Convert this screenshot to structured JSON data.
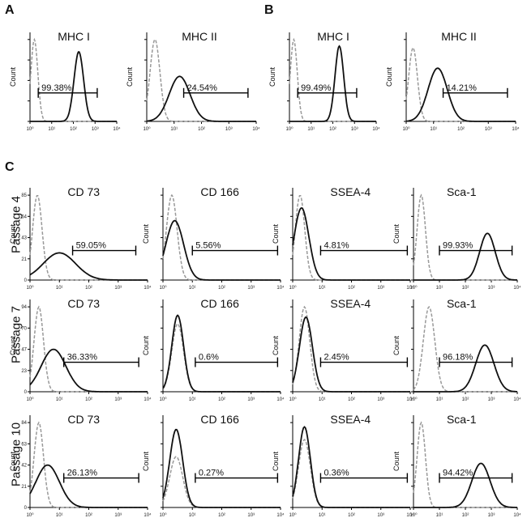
{
  "panels": [
    "A",
    "B",
    "C"
  ],
  "row_labels": [
    "Passage 4",
    "Passage 7",
    "Passage 10"
  ],
  "colors": {
    "sample": "#111111",
    "control": "#999999"
  },
  "axis": {
    "ylabel": "Count",
    "x_tick_labels": [
      "10⁰",
      "10¹",
      "10²",
      "10³",
      "10⁴"
    ]
  },
  "chart_data": [
    {
      "id": "A1",
      "type": "area",
      "title": "MHC I",
      "gate_label": "99.38%",
      "xlim_log10": [
        0,
        4
      ],
      "gate_log10": [
        0.38,
        3.1
      ],
      "y_ticks": [],
      "sample": {
        "peak_log10": 2.25,
        "sigma": 0.22,
        "peak_frac": 0.85
      },
      "control": {
        "peak_log10": 0.2,
        "sigma": 0.16,
        "peak_frac": 1.0
      }
    },
    {
      "id": "A2",
      "type": "area",
      "title": "MHC II",
      "gate_label": "24.54%",
      "xlim_log10": [
        0,
        4
      ],
      "gate_log10": [
        1.35,
        3.7
      ],
      "y_ticks": [],
      "sample": {
        "peak_log10": 1.2,
        "sigma": 0.38,
        "peak_frac": 0.55
      },
      "control": {
        "peak_log10": 0.3,
        "sigma": 0.18,
        "peak_frac": 1.0
      }
    },
    {
      "id": "B1",
      "type": "area",
      "title": "MHC I",
      "gate_label": "99.49%",
      "xlim_log10": [
        0,
        4
      ],
      "gate_log10": [
        0.38,
        3.1
      ],
      "y_ticks": [],
      "sample": {
        "peak_log10": 2.3,
        "sigma": 0.2,
        "peak_frac": 0.92
      },
      "control": {
        "peak_log10": 0.2,
        "sigma": 0.16,
        "peak_frac": 1.0
      }
    },
    {
      "id": "B2",
      "type": "area",
      "title": "MHC II",
      "gate_label": "14.21%",
      "xlim_log10": [
        0,
        4
      ],
      "gate_log10": [
        1.35,
        3.7
      ],
      "y_ticks": [],
      "sample": {
        "peak_log10": 1.15,
        "sigma": 0.35,
        "peak_frac": 0.65
      },
      "control": {
        "peak_log10": 0.25,
        "sigma": 0.16,
        "peak_frac": 0.9
      }
    },
    {
      "id": "C1",
      "type": "area",
      "title": "CD 73",
      "gate_label": "59.05%",
      "xlim_log10": [
        0,
        4
      ],
      "gate_log10": [
        1.45,
        3.6
      ],
      "y_ticks": [
        0,
        21,
        43,
        64,
        85
      ],
      "sample": {
        "peak_log10": 1.0,
        "sigma": 0.55,
        "peak_frac": 0.32
      },
      "control": {
        "peak_log10": 0.25,
        "sigma": 0.16,
        "peak_frac": 1.0
      }
    },
    {
      "id": "C2",
      "type": "area",
      "title": "CD 166",
      "gate_label": "5.56%",
      "xlim_log10": [
        0,
        4
      ],
      "gate_log10": [
        1.0,
        3.9
      ],
      "y_ticks": [],
      "sample": {
        "peak_log10": 0.4,
        "sigma": 0.3,
        "peak_frac": 0.7
      },
      "control": {
        "peak_log10": 0.3,
        "sigma": 0.18,
        "peak_frac": 1.0
      }
    },
    {
      "id": "C3",
      "type": "area",
      "title": "SSEA-4",
      "gate_label": "4.81%",
      "xlim_log10": [
        0,
        4
      ],
      "gate_log10": [
        0.95,
        3.9
      ],
      "y_ticks": [],
      "sample": {
        "peak_log10": 0.3,
        "sigma": 0.25,
        "peak_frac": 0.85
      },
      "control": {
        "peak_log10": 0.25,
        "sigma": 0.16,
        "peak_frac": 1.0
      }
    },
    {
      "id": "C4",
      "type": "area",
      "title": "Sca-1",
      "gate_label": "99.93%",
      "xlim_log10": [
        0,
        4
      ],
      "gate_log10": [
        1.0,
        3.8
      ],
      "y_ticks": [],
      "sample": {
        "peak_log10": 2.85,
        "sigma": 0.3,
        "peak_frac": 0.55
      },
      "control": {
        "peak_log10": 0.3,
        "sigma": 0.16,
        "peak_frac": 1.0
      }
    },
    {
      "id": "C5",
      "type": "area",
      "title": "CD 73",
      "gate_label": "36.33%",
      "xlim_log10": [
        0,
        4
      ],
      "gate_log10": [
        1.15,
        3.7
      ],
      "y_ticks": [
        0,
        23,
        47,
        70,
        94
      ],
      "sample": {
        "peak_log10": 0.8,
        "sigma": 0.42,
        "peak_frac": 0.5
      },
      "control": {
        "peak_log10": 0.3,
        "sigma": 0.16,
        "peak_frac": 1.0
      }
    },
    {
      "id": "C6",
      "type": "area",
      "title": "CD 166",
      "gate_label": "0.6%",
      "xlim_log10": [
        0,
        4
      ],
      "gate_log10": [
        1.1,
        3.9
      ],
      "y_ticks": [],
      "sample": {
        "peak_log10": 0.5,
        "sigma": 0.2,
        "peak_frac": 0.9
      },
      "control": {
        "peak_log10": 0.5,
        "sigma": 0.2,
        "peak_frac": 0.8
      }
    },
    {
      "id": "C7",
      "type": "area",
      "title": "SSEA-4",
      "gate_label": "2.45%",
      "xlim_log10": [
        0,
        4
      ],
      "gate_log10": [
        0.95,
        3.9
      ],
      "y_ticks": [],
      "sample": {
        "peak_log10": 0.45,
        "sigma": 0.22,
        "peak_frac": 0.88
      },
      "control": {
        "peak_log10": 0.4,
        "sigma": 0.18,
        "peak_frac": 1.0
      }
    },
    {
      "id": "C8",
      "type": "area",
      "title": "Sca-1",
      "gate_label": "96.18%",
      "xlim_log10": [
        0,
        4
      ],
      "gate_log10": [
        1.0,
        3.8
      ],
      "y_ticks": [],
      "sample": {
        "peak_log10": 2.75,
        "sigma": 0.35,
        "peak_frac": 0.55
      },
      "control": {
        "peak_log10": 0.6,
        "sigma": 0.22,
        "peak_frac": 1.0
      }
    },
    {
      "id": "C9",
      "type": "area",
      "title": "CD 73",
      "gate_label": "26.13%",
      "xlim_log10": [
        0,
        4
      ],
      "gate_log10": [
        1.15,
        3.7
      ],
      "y_ticks": [
        0,
        21,
        42,
        63,
        84
      ],
      "sample": {
        "peak_log10": 0.6,
        "sigma": 0.4,
        "peak_frac": 0.5
      },
      "control": {
        "peak_log10": 0.3,
        "sigma": 0.16,
        "peak_frac": 1.0
      }
    },
    {
      "id": "C10",
      "type": "area",
      "title": "CD 166",
      "gate_label": "0.27%",
      "xlim_log10": [
        0,
        4
      ],
      "gate_log10": [
        1.1,
        3.9
      ],
      "y_ticks": [],
      "sample": {
        "peak_log10": 0.45,
        "sigma": 0.22,
        "peak_frac": 0.92
      },
      "control": {
        "peak_log10": 0.45,
        "sigma": 0.22,
        "peak_frac": 0.6
      }
    },
    {
      "id": "C11",
      "type": "area",
      "title": "SSEA-4",
      "gate_label": "0.36%",
      "xlim_log10": [
        0,
        4
      ],
      "gate_log10": [
        0.95,
        3.9
      ],
      "y_ticks": [],
      "sample": {
        "peak_log10": 0.4,
        "sigma": 0.2,
        "peak_frac": 0.95
      },
      "control": {
        "peak_log10": 0.4,
        "sigma": 0.2,
        "peak_frac": 0.8
      }
    },
    {
      "id": "C12",
      "type": "area",
      "title": "Sca-1",
      "gate_label": "94.42%",
      "xlim_log10": [
        0,
        4
      ],
      "gate_log10": [
        1.0,
        3.8
      ],
      "y_ticks": [],
      "sample": {
        "peak_log10": 2.6,
        "sigma": 0.35,
        "peak_frac": 0.52
      },
      "control": {
        "peak_log10": 0.3,
        "sigma": 0.16,
        "peak_frac": 1.0
      }
    }
  ]
}
